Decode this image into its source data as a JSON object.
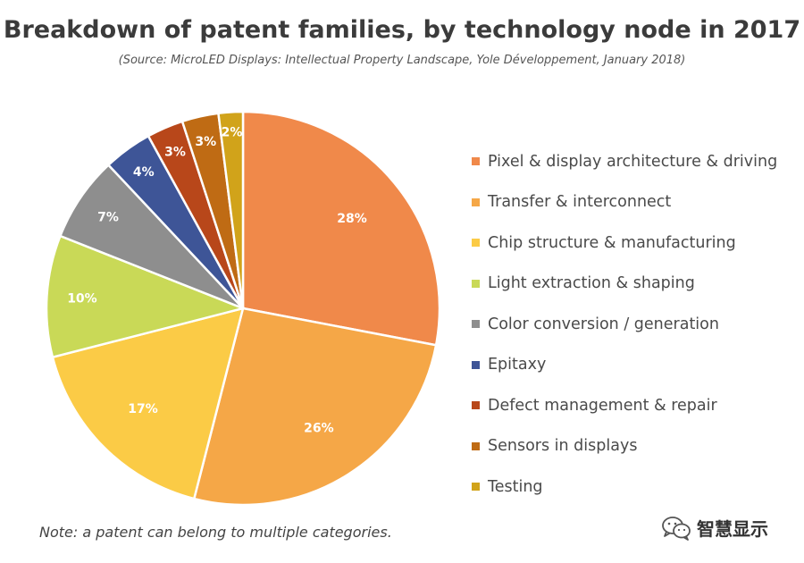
{
  "chart_data": {
    "type": "pie",
    "title": "Breakdown of patent families, by technology node in 2017",
    "subtitle": "(Source: MicroLED Displays: Intellectual Property Landscape, Yole Développement, January 2018)",
    "slices": [
      {
        "label": "Pixel & display architecture & driving",
        "value": 28,
        "display": "28%",
        "color": "#F0894A"
      },
      {
        "label": "Transfer & interconnect",
        "value": 26,
        "display": "26%",
        "color": "#F5A747"
      },
      {
        "label": "Chip structure & manufacturing",
        "value": 17,
        "display": "17%",
        "color": "#FBCB46"
      },
      {
        "label": "Light extraction & shaping",
        "value": 10,
        "display": "10%",
        "color": "#C9D957"
      },
      {
        "label": "Color conversion / generation",
        "value": 7,
        "display": "7%",
        "color": "#8E8E8E"
      },
      {
        "label": "Epitaxy",
        "value": 4,
        "display": "4%",
        "color": "#3E5597"
      },
      {
        "label": "Defect management & repair",
        "value": 3,
        "display": "3%",
        "color": "#B8471A"
      },
      {
        "label": "Sensors in displays",
        "value": 3,
        "display": "3%",
        "color": "#BF6B14"
      },
      {
        "label": "Testing",
        "value": 2,
        "display": "2%",
        "color": "#D1A31A"
      }
    ],
    "legend_position": "right"
  },
  "note": "Note: a patent can belong to multiple categories.",
  "watermark": {
    "text": "智慧显示",
    "icon": "wechat-icon"
  }
}
